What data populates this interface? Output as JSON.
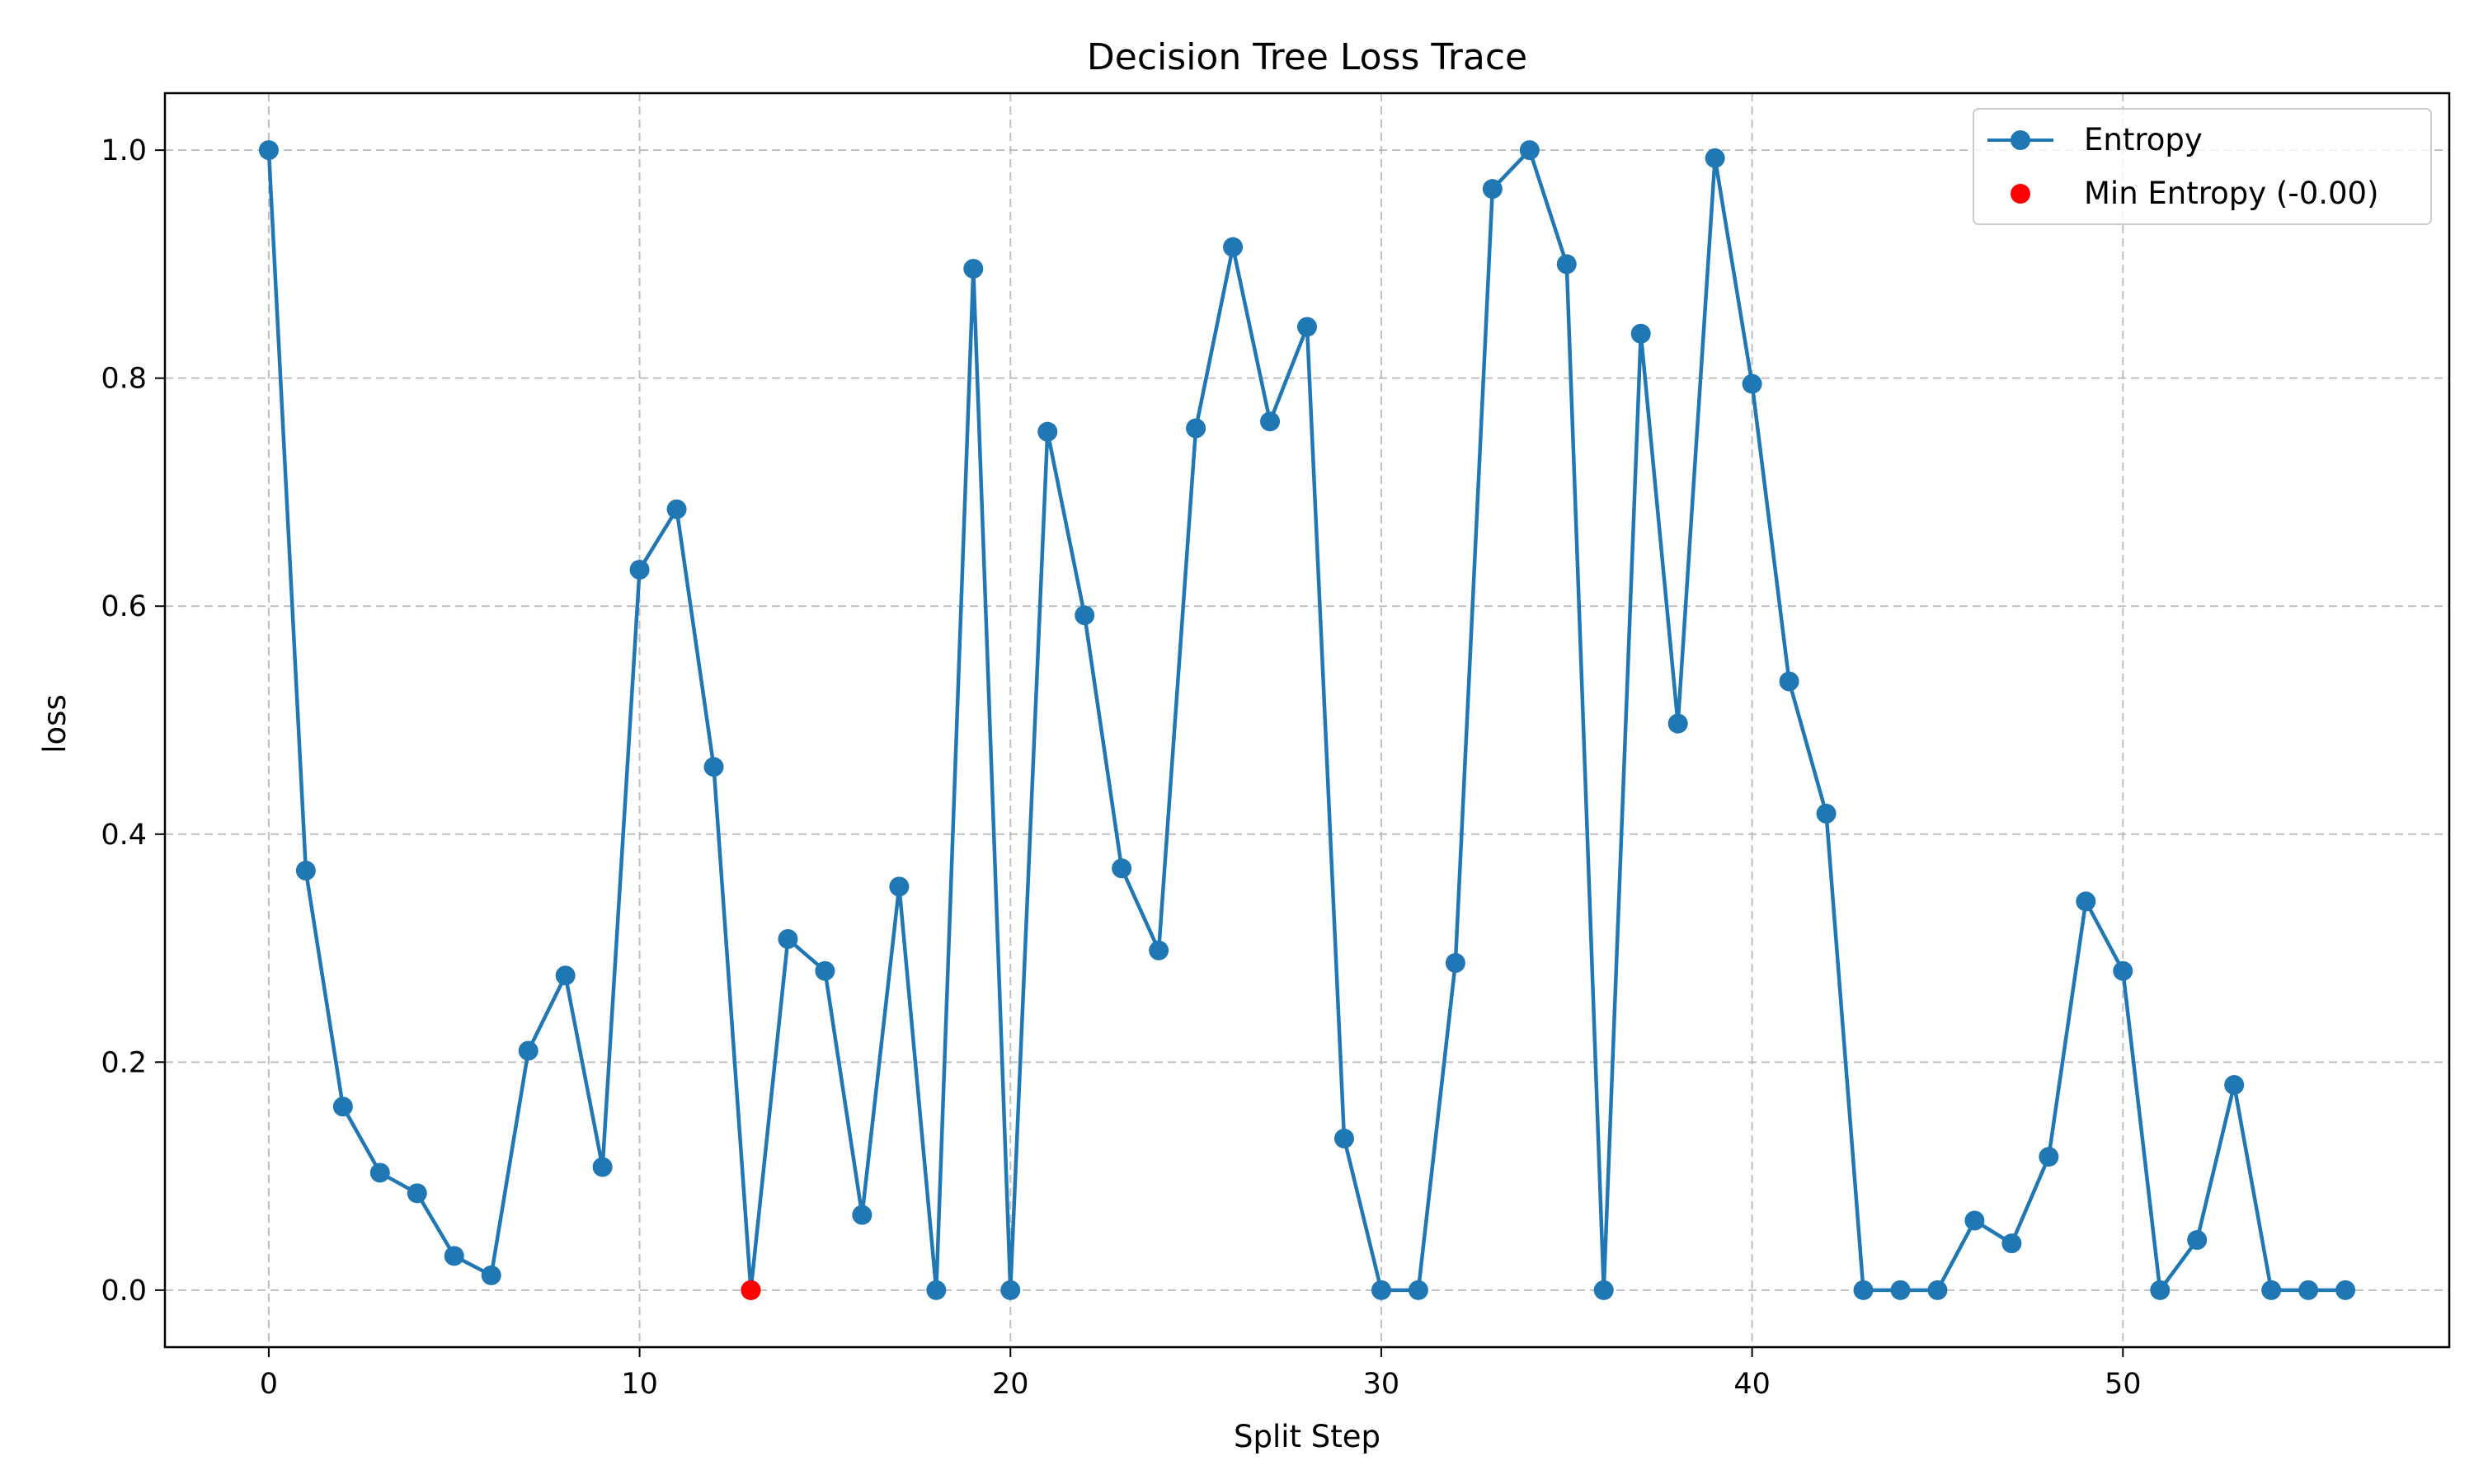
{
  "chart_data": {
    "type": "line",
    "title": "Decision Tree Loss Trace",
    "xlabel": "Split Step",
    "ylabel": "loss",
    "xlim": [
      -2.8,
      58.8
    ],
    "ylim": [
      -0.05,
      1.05
    ],
    "xticks": [
      0,
      10,
      20,
      30,
      40,
      50
    ],
    "yticks": [
      0.0,
      0.2,
      0.4,
      0.6,
      0.8,
      1.0
    ],
    "xtick_labels": [
      "0",
      "10",
      "20",
      "30",
      "40",
      "50"
    ],
    "ytick_labels": [
      "0.0",
      "0.2",
      "0.4",
      "0.6",
      "0.8",
      "1.0"
    ],
    "grid": true,
    "legend_position": "top-right",
    "series": [
      {
        "name": "Entropy",
        "kind": "line-with-markers",
        "color": "#1f77b4",
        "x": [
          0,
          1,
          2,
          3,
          4,
          5,
          6,
          7,
          8,
          9,
          10,
          11,
          12,
          13,
          14,
          15,
          16,
          17,
          18,
          19,
          20,
          21,
          22,
          23,
          24,
          25,
          26,
          27,
          28,
          29,
          30,
          31,
          32,
          33,
          34,
          35,
          36,
          37,
          38,
          39,
          40,
          41,
          42,
          43,
          44,
          45,
          46,
          47,
          48,
          49,
          50,
          51,
          52,
          53,
          54,
          55,
          56
        ],
        "y": [
          1.0,
          0.368,
          0.161,
          0.103,
          0.085,
          0.03,
          0.013,
          0.21,
          0.276,
          0.108,
          0.632,
          0.685,
          0.459,
          0.0,
          0.308,
          0.28,
          0.066,
          0.354,
          0.0,
          0.896,
          0.0,
          0.753,
          0.592,
          0.37,
          0.298,
          0.756,
          0.915,
          0.762,
          0.845,
          0.133,
          0.0,
          0.0,
          0.287,
          0.966,
          1.0,
          0.9,
          0.0,
          0.839,
          0.497,
          0.993,
          0.795,
          0.534,
          0.418,
          0.0,
          0.0,
          0.0,
          0.061,
          0.041,
          0.117,
          0.341,
          0.28,
          0.0,
          0.044,
          0.18,
          0.0,
          0.0,
          0.0
        ]
      },
      {
        "name": "Min Entropy (-0.00)",
        "kind": "scatter",
        "color": "#ff0000",
        "x": [
          13
        ],
        "y": [
          0.0
        ]
      }
    ]
  }
}
